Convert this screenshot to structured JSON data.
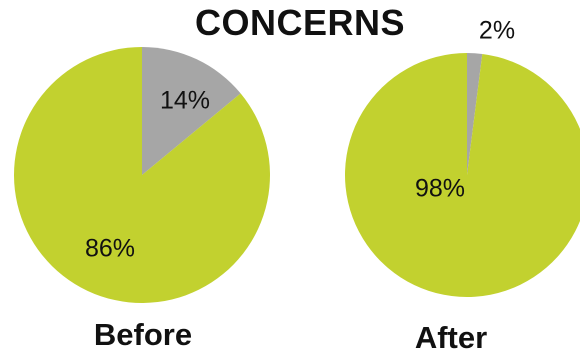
{
  "chart_title": "CONCERNS",
  "colors": {
    "green": "#c2d12f",
    "gray": "#a6a6a6"
  },
  "chart_data": [
    {
      "type": "pie",
      "title": "Before",
      "categories": [
        "",
        ""
      ],
      "values": [
        14,
        86
      ],
      "labels": [
        "14%",
        "86%"
      ],
      "colors": [
        "#a6a6a6",
        "#c2d12f"
      ]
    },
    {
      "type": "pie",
      "title": "After",
      "categories": [
        "",
        ""
      ],
      "values": [
        2,
        98
      ],
      "labels": [
        "2%",
        "98%"
      ],
      "colors": [
        "#a6a6a6",
        "#c2d12f"
      ]
    }
  ]
}
